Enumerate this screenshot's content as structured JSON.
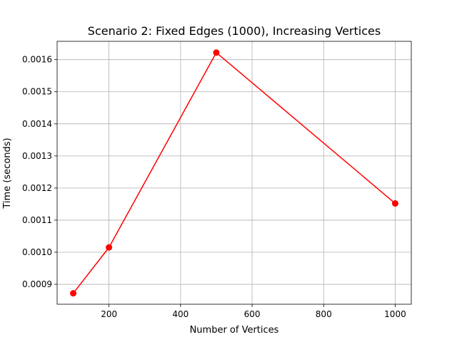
{
  "chart_data": {
    "type": "line",
    "title": "Scenario 2: Fixed Edges (1000), Increasing Vertices",
    "xlabel": "Number of Vertices",
    "ylabel": "Time (seconds)",
    "x": [
      100,
      200,
      500,
      1000
    ],
    "series": [
      {
        "values": [
          0.000872,
          0.001015,
          0.001622,
          0.001152
        ],
        "color": "#ff0000",
        "marker": "circle"
      }
    ],
    "xlim": [
      55,
      1045
    ],
    "ylim": [
      0.000838,
      0.001657
    ],
    "xticks": [
      200,
      400,
      600,
      800,
      1000
    ],
    "xtick_labels": [
      "200",
      "400",
      "600",
      "800",
      "1000"
    ],
    "yticks": [
      0.0009,
      0.001,
      0.0011,
      0.0012,
      0.0013,
      0.0014,
      0.0015,
      0.0016
    ],
    "ytick_labels": [
      "0.0009",
      "0.0010",
      "0.0011",
      "0.0012",
      "0.0013",
      "0.0014",
      "0.0015",
      "0.0016"
    ],
    "grid": true,
    "legend": false
  }
}
